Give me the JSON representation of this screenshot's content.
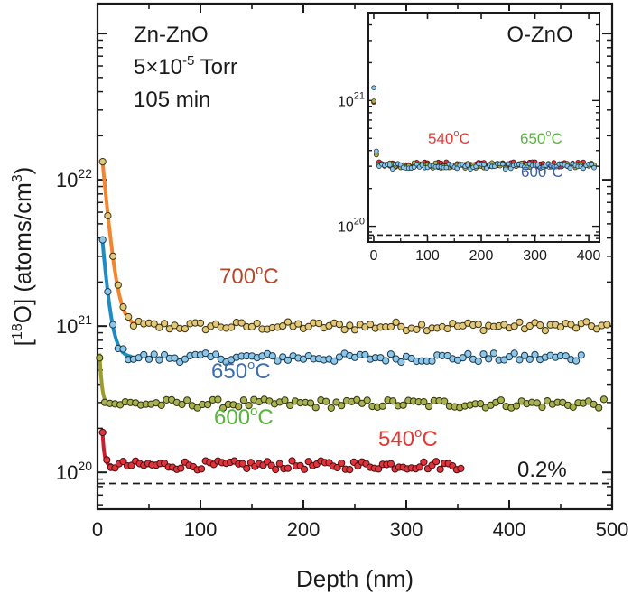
{
  "chart_data": [
    {
      "type": "scatter",
      "xlabel": "Depth (nm)",
      "ylabel_parts": {
        "open": "[",
        "sup": "18",
        "mid": "O] (atoms/cm",
        "unit_sup": "3",
        "close": ")"
      },
      "xlim": [
        0,
        500
      ],
      "ylim": [
        56000000000000000000,
        160000000000000000000000
      ],
      "yscale": "log",
      "x_ticks": [
        "0",
        "100",
        "200",
        "300",
        "400",
        "500"
      ],
      "y_ticks": [
        {
          "value": 100000000000000000000,
          "base": "10",
          "exp": "20"
        },
        {
          "value": 1000000000000000000000,
          "base": "10",
          "exp": "21"
        },
        {
          "value": 10000000000000000000000,
          "base": "10",
          "exp": "22"
        }
      ],
      "annotations": {
        "line1": "Zn-ZnO",
        "line2_base": "5×10",
        "line2_exp": "-5",
        "line2_tail": " Torr",
        "line3": "105 min"
      },
      "reference_line": {
        "y": 84000000000000000000,
        "label": "0.2%",
        "style": "dashed"
      },
      "series": [
        {
          "name_base": "700",
          "name_sup": "o",
          "name_tail": "C",
          "color": "#e2c97a",
          "edge": "#3a2e10",
          "label_color": "#b4492c",
          "fit_color": "#f2852e",
          "x_start": 5,
          "x_end": 495,
          "step": 5,
          "surface": 13000000000000000000000,
          "decay_nm": 5.5,
          "bulk": 1000000000000000000000
        },
        {
          "name_base": "650",
          "name_sup": "o",
          "name_tail": "C",
          "color": "#8ec6e8",
          "edge": "#17384d",
          "label_color": "#3a6fb0",
          "fit_color": "#1b8dc4",
          "x_start": 5,
          "x_end": 470,
          "step": 5,
          "surface": 3700000000000000000000,
          "decay_nm": 4.8,
          "bulk": 610000000000000000000
        },
        {
          "name_base": "600",
          "name_sup": "o",
          "name_tail": "C",
          "color": "#a9b24f",
          "edge": "#2e3210",
          "label_color": "#5ab33c",
          "fit_color": "#9a9d2e",
          "x_start": 2,
          "x_end": 495,
          "step": 5,
          "surface": 650000000000000000000,
          "decay_nm": 1.8,
          "bulk": 295000000000000000000
        },
        {
          "name_base": "540",
          "name_sup": "o",
          "name_tail": "C",
          "color": "#e0343d",
          "edge": "#4a0c10",
          "label_color": "#e23a36",
          "fit_color": "#c81e2d",
          "x_start": 5,
          "x_end": 355,
          "step": 4,
          "surface": 180000000000000000000,
          "decay_nm": 1.5,
          "bulk": 112000000000000000000
        }
      ]
    },
    {
      "type": "scatter",
      "title": "O-ZnO",
      "xlim": [
        -10,
        420
      ],
      "ylim": [
        75000000000000000000,
        5000000000000000000000
      ],
      "yscale": "log",
      "x_ticks": [
        "0",
        "100",
        "200",
        "300",
        "400"
      ],
      "y_ticks": [
        {
          "value": 100000000000000000000,
          "base": "10",
          "exp": "20"
        },
        {
          "value": 1000000000000000000000,
          "base": "10",
          "exp": "21"
        }
      ],
      "reference_line": {
        "y": 85000000000000000000,
        "style": "dashed"
      },
      "series": [
        {
          "name_base": "540",
          "name_sup": "o",
          "name_tail": "C",
          "label_color": "#e23a36",
          "color": "#e0343d",
          "edge": "#4a0c10",
          "x_start": 0,
          "x_end": 410,
          "step": 5,
          "surface": 1000000000000000000000,
          "decay_nm": 2.0,
          "bulk": 310000000000000000000
        },
        {
          "name_base": "650",
          "name_sup": "o",
          "name_tail": "C",
          "label_color": "#5ab33c",
          "color": "#a9b24f",
          "edge": "#2e3210",
          "x_start": 0,
          "x_end": 410,
          "step": 5,
          "surface": 1000000000000000000000,
          "decay_nm": 2.0,
          "bulk": 305000000000000000000
        },
        {
          "name_base": "600",
          "name_sup": "o",
          "name_tail": "C",
          "label_color": "#3a5ea8",
          "color": "#8ec6e8",
          "edge": "#17384d",
          "x_start": 0,
          "x_end": 410,
          "step": 5,
          "surface": 1300000000000000000000,
          "decay_nm": 2.0,
          "bulk": 300000000000000000000
        }
      ]
    }
  ]
}
